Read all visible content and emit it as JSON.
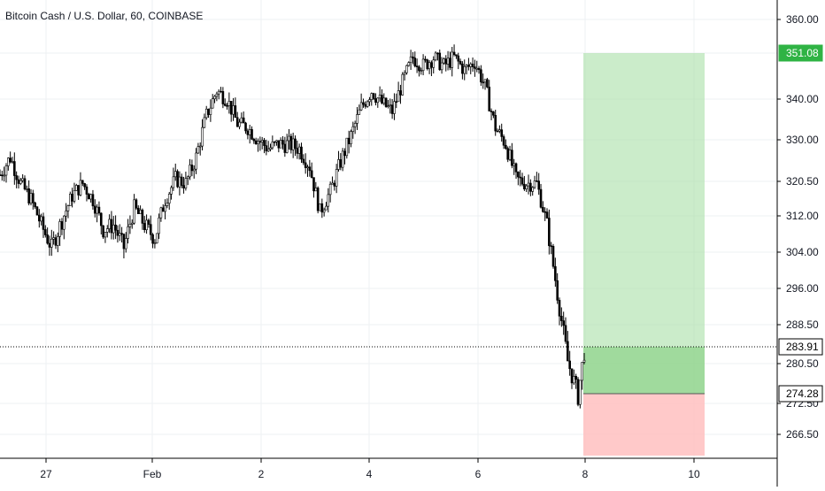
{
  "header": {
    "title": "Bitcoin Cash / U.S. Dollar, 60, COINBASE"
  },
  "price_axis": {
    "ticks": [
      "360.00",
      "351.08",
      "340.00",
      "330.00",
      "320.50",
      "312.00",
      "304.00",
      "296.00",
      "288.50",
      "280.50",
      "272.50",
      "266.50"
    ],
    "current_price_label": "283.91",
    "target_label": "351.08",
    "entry_label": "274.28"
  },
  "time_axis": {
    "ticks": [
      "27",
      "Feb",
      "2",
      "4",
      "6",
      "8",
      "10"
    ]
  },
  "colors": {
    "profit_zone": "#a8dfa6",
    "profit_zone_active": "#8fd48c",
    "loss_zone": "#ffbcbc",
    "candle": "#000000",
    "target_badge": "#2fb344",
    "label_badge": "#ffffff"
  },
  "chart_data": {
    "type": "candlestick",
    "title": "Bitcoin Cash / U.S. Dollar, 60, COINBASE",
    "ylim": [
      262,
      364
    ],
    "x_ticks": [
      "27",
      "Feb",
      "2",
      "4",
      "6",
      "8",
      "10"
    ],
    "trend_close": [
      [
        0,
        322
      ],
      [
        5,
        326
      ],
      [
        10,
        320
      ],
      [
        15,
        316
      ],
      [
        20,
        310
      ],
      [
        25,
        305
      ],
      [
        30,
        311
      ],
      [
        35,
        317
      ],
      [
        40,
        320
      ],
      [
        45,
        316
      ],
      [
        50,
        309
      ],
      [
        55,
        310
      ],
      [
        60,
        305
      ],
      [
        65,
        314
      ],
      [
        70,
        310
      ],
      [
        75,
        307
      ],
      [
        80,
        316
      ],
      [
        85,
        321
      ],
      [
        90,
        320
      ],
      [
        95,
        326
      ],
      [
        100,
        336
      ],
      [
        105,
        342
      ],
      [
        110,
        340
      ],
      [
        115,
        334
      ],
      [
        120,
        333
      ],
      [
        125,
        330
      ],
      [
        130,
        328
      ],
      [
        135,
        329
      ],
      [
        140,
        329
      ],
      [
        145,
        328
      ],
      [
        150,
        324
      ],
      [
        155,
        313
      ],
      [
        160,
        318
      ],
      [
        165,
        325
      ],
      [
        170,
        331
      ],
      [
        175,
        338
      ],
      [
        180,
        342
      ],
      [
        185,
        339
      ],
      [
        190,
        337
      ],
      [
        195,
        344
      ],
      [
        200,
        350
      ],
      [
        205,
        348
      ],
      [
        210,
        350
      ],
      [
        215,
        348
      ],
      [
        220,
        350
      ],
      [
        225,
        347
      ],
      [
        230,
        349
      ],
      [
        235,
        343
      ],
      [
        240,
        333
      ],
      [
        245,
        329
      ],
      [
        250,
        321
      ],
      [
        255,
        320
      ],
      [
        260,
        320
      ],
      [
        265,
        310
      ],
      [
        270,
        295
      ],
      [
        275,
        281
      ],
      [
        280,
        274
      ],
      [
        283,
        283
      ]
    ],
    "risk_reward": {
      "target": 351.08,
      "current": 283.91,
      "entry": 274.28,
      "stop": 262
    }
  }
}
